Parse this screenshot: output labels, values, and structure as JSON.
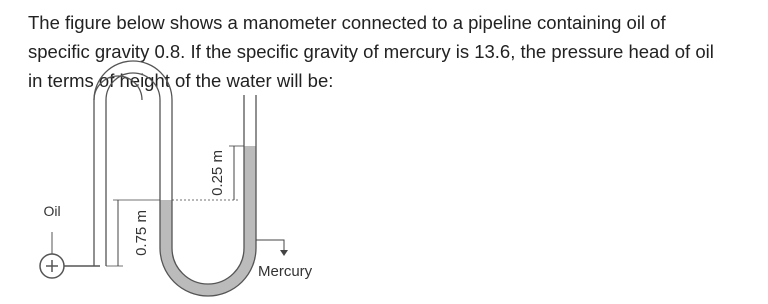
{
  "question": {
    "text": "The figure below shows a manometer connected to a pipeline containing oil of specific gravity 0.8. If the specific gravity of mercury is 13.6, the pressure head of oil in terms of height of the water will be:"
  },
  "figure": {
    "labels": {
      "oil": "Oil",
      "left_height": "0.75 m",
      "right_height": "0.25 m",
      "mercury": "Mercury"
    }
  }
}
